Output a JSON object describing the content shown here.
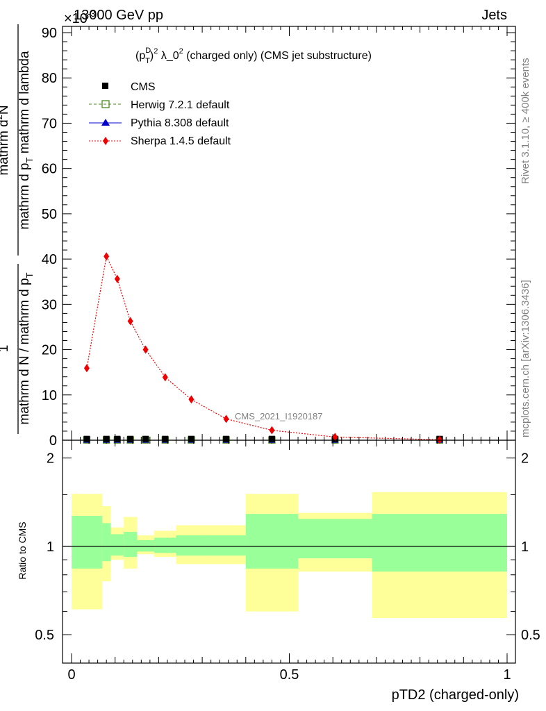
{
  "header": {
    "left": "13000 GeV pp",
    "right": "Jets",
    "exponent": "×10",
    "exponent_power": "-3"
  },
  "side_labels": {
    "rivet": "Rivet 3.1.10, ≥ 400k events",
    "mcplots": "mcplots.cern.ch [arXiv:1306.3436]"
  },
  "y_axis_title": {
    "numerator_1": "1",
    "denominator_1": "mathrm d N / mathrm d p",
    "den_sub_1": "T",
    "numerator_2": "mathrm d",
    "num_sup_2": "2",
    "numerator_2b": "N",
    "denominator_2": "mathrm d p",
    "den_sub_2": "T",
    "denominator_2b": " mathrm d lambda"
  },
  "ratio_label": "Ratio to CMS",
  "watermark": "CMS_2021_I1920187",
  "chart_data": {
    "type": "line",
    "title_parts": {
      "open": "(p",
      "sup": "D",
      "sub": "T",
      "close": ")",
      "power": "2",
      "rest": " λ_0",
      "power2": "2",
      "suffix": " (charged only) (CMS jet substructure)"
    },
    "xlabel": "pTD2 (charged-only)",
    "xlim": [
      0,
      1
    ],
    "x_ticks": [
      0,
      0.5,
      1
    ],
    "x_tick_labels": [
      "0",
      "0.5",
      "1"
    ],
    "ylim": [
      0,
      90
    ],
    "y_ticks": [
      0,
      10,
      20,
      30,
      40,
      50,
      60,
      70,
      80,
      90
    ],
    "y_tick_labels": [
      "0",
      "10",
      "20",
      "30",
      "40",
      "50",
      "60",
      "70",
      "80",
      "90"
    ],
    "legend": [
      "CMS",
      "Herwig 7.2.1 default",
      "Pythia 8.308 default",
      "Sherpa 1.4.5 default"
    ],
    "bin_edges": [
      0,
      0.07,
      0.09,
      0.12,
      0.15,
      0.19,
      0.24,
      0.31,
      0.4,
      0.52,
      0.69,
      1.0
    ],
    "cms_x": [
      0.035,
      0.08,
      0.105,
      0.135,
      0.17,
      0.215,
      0.275,
      0.355,
      0.46,
      0.605,
      0.845
    ],
    "cms_y": [
      0.05,
      0.05,
      0.05,
      0.05,
      0.05,
      0.05,
      0.05,
      0.05,
      0.05,
      0.05,
      0.05
    ],
    "series": [
      {
        "name": "Herwig 7.2.1 default",
        "color": "#4a8a1e",
        "x": [
          0.035,
          0.08,
          0.105,
          0.135,
          0.17,
          0.215,
          0.275,
          0.355,
          0.46,
          0.605,
          0.845
        ],
        "values": [
          0.05,
          0.05,
          0.05,
          0.05,
          0.05,
          0.05,
          0.05,
          0.05,
          0.05,
          0.05,
          0.05
        ]
      },
      {
        "name": "Pythia 8.308 default",
        "color": "#0000cc",
        "x": [
          0.035,
          0.08,
          0.105,
          0.135,
          0.17,
          0.215,
          0.275,
          0.355,
          0.46,
          0.605,
          0.845
        ],
        "values": [
          0.05,
          0.05,
          0.05,
          0.05,
          0.05,
          0.05,
          0.05,
          0.05,
          0.05,
          0.05,
          0.05
        ]
      },
      {
        "name": "Sherpa 1.4.5 default",
        "color": "#ee0000",
        "x": [
          0.035,
          0.08,
          0.105,
          0.135,
          0.17,
          0.215,
          0.275,
          0.355,
          0.46,
          0.605,
          0.845
        ],
        "values": [
          15.9,
          40.6,
          35.6,
          26.3,
          20.0,
          13.9,
          9.0,
          4.7,
          2.2,
          0.7,
          0.1
        ]
      }
    ],
    "ratio": {
      "ylim": [
        0.4,
        2.3
      ],
      "y_ticks": [
        0.5,
        1,
        2
      ],
      "y_tick_labels": [
        "0.5",
        "1",
        "2"
      ],
      "band_inner_lo": [
        0.84,
        0.89,
        0.93,
        0.92,
        0.96,
        0.95,
        0.93,
        0.93,
        0.84,
        0.91,
        0.82
      ],
      "band_inner_hi": [
        1.27,
        1.2,
        1.1,
        1.12,
        1.05,
        1.07,
        1.09,
        1.09,
        1.29,
        1.24,
        1.29
      ],
      "band_outer_lo": [
        0.61,
        0.76,
        0.9,
        0.84,
        0.94,
        0.92,
        0.87,
        0.87,
        0.6,
        0.82,
        0.57
      ],
      "band_outer_hi": [
        1.51,
        1.37,
        1.16,
        1.26,
        1.09,
        1.13,
        1.18,
        1.18,
        1.51,
        1.3,
        1.53
      ],
      "inner_color": "#99ff99",
      "outer_color": "#ffff99"
    }
  }
}
